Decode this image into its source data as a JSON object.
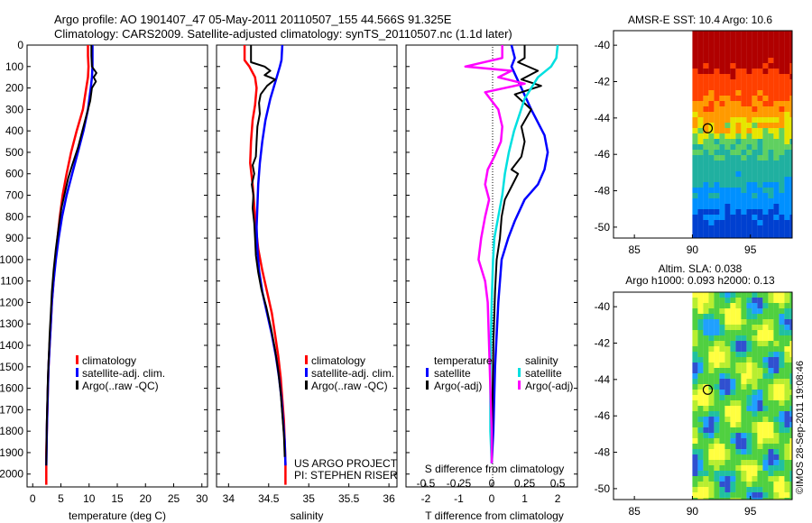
{
  "header": {
    "title_line1": "Argo profile: AO 1901407_47 05-May-2011 20110507_155 44.566S 91.325E",
    "title_line2": "Climatology: CARS2009. Satellite-adjusted climatology: synTS_20110507.nc (1.1d later)"
  },
  "colors": {
    "climatology": "#ff0000",
    "satellite": "#0000ff",
    "argo": "#000000",
    "salinity_satellite": "#00e0e0",
    "salinity_argo": "#ff00ff"
  },
  "legend": {
    "climatology": "climatology",
    "satellite_adj": "satellite-adj. clim.",
    "argo_raw": "Argo(..raw -QC)",
    "temperature": "temperature",
    "salinity": "salinity",
    "satellite": "satellite",
    "argo_adj": "Argo(-adj)"
  },
  "credits": {
    "project": "US ARGO PROJECT",
    "pi": "PI: STEPHEN RISER",
    "imos": "©IMOS 28-Sep-2011 19:08:46"
  },
  "maps": {
    "sst_title": "AMSR-E SST: 10.4  Argo: 10.6",
    "sla_title_1": "Altim. SLA: 0.038",
    "sla_title_2": "Argo h1000: 0.093 h2000: 0.13",
    "xticks": [
      "85",
      "90",
      "95"
    ],
    "yticks": [
      "-40",
      "-42",
      "-44",
      "-46",
      "-48",
      "-50"
    ],
    "float_position": {
      "lon": 91.325,
      "lat": -44.566
    }
  },
  "chart_data": [
    {
      "type": "line",
      "name": "temperature profile",
      "xlabel": "temperature (deg C)",
      "ylabel": "",
      "xlim": [
        -1,
        31
      ],
      "ylim": [
        2060,
        0
      ],
      "xticks": [
        0,
        5,
        10,
        15,
        20,
        25,
        30
      ],
      "xticklabels": [
        "0",
        "5",
        "10",
        "15",
        "20",
        "25",
        "30"
      ],
      "yticks": [
        0,
        100,
        200,
        300,
        400,
        500,
        600,
        700,
        800,
        900,
        1000,
        1100,
        1200,
        1300,
        1400,
        1500,
        1600,
        1700,
        1800,
        1900,
        2000
      ],
      "series": [
        {
          "name": "climatology",
          "color": "#ff0000",
          "points": [
            [
              9.8,
              0
            ],
            [
              9.8,
              50
            ],
            [
              9.9,
              100
            ],
            [
              9.8,
              150
            ],
            [
              9.5,
              200
            ],
            [
              8.9,
              300
            ],
            [
              7.8,
              400
            ],
            [
              6.8,
              500
            ],
            [
              6.0,
              600
            ],
            [
              5.3,
              700
            ],
            [
              4.8,
              800
            ],
            [
              4.4,
              900
            ],
            [
              4.0,
              1000
            ],
            [
              3.7,
              1100
            ],
            [
              3.4,
              1200
            ],
            [
              3.2,
              1300
            ],
            [
              3.0,
              1400
            ],
            [
              2.8,
              1500
            ],
            [
              2.7,
              1600
            ],
            [
              2.6,
              1700
            ],
            [
              2.5,
              1800
            ],
            [
              2.4,
              1900
            ],
            [
              2.4,
              2050
            ]
          ]
        },
        {
          "name": "satellite-adj. clim.",
          "color": "#0000ff",
          "points": [
            [
              10.6,
              0
            ],
            [
              10.6,
              50
            ],
            [
              10.6,
              100
            ],
            [
              10.5,
              150
            ],
            [
              10.3,
              200
            ],
            [
              9.8,
              300
            ],
            [
              9.0,
              400
            ],
            [
              8.0,
              500
            ],
            [
              7.0,
              600
            ],
            [
              6.0,
              700
            ],
            [
              5.2,
              800
            ],
            [
              4.6,
              900
            ],
            [
              4.1,
              1000
            ],
            [
              3.7,
              1100
            ],
            [
              3.4,
              1200
            ],
            [
              3.2,
              1300
            ],
            [
              3.0,
              1400
            ],
            [
              2.8,
              1500
            ],
            [
              2.7,
              1600
            ],
            [
              2.6,
              1700
            ],
            [
              2.5,
              1800
            ],
            [
              2.45,
              1900
            ],
            [
              2.4,
              1960
            ]
          ]
        },
        {
          "name": "Argo(..raw -QC)",
          "color": "#000000",
          "points": [
            [
              10.4,
              0
            ],
            [
              10.4,
              50
            ],
            [
              10.5,
              100
            ],
            [
              11.3,
              130
            ],
            [
              10.8,
              150
            ],
            [
              11.2,
              170
            ],
            [
              10.5,
              200
            ],
            [
              10.2,
              260
            ],
            [
              9.6,
              320
            ],
            [
              8.8,
              400
            ],
            [
              8.0,
              480
            ],
            [
              7.0,
              560
            ],
            [
              6.3,
              620
            ],
            [
              5.6,
              700
            ],
            [
              5.1,
              760
            ],
            [
              4.6,
              850
            ],
            [
              4.1,
              950
            ],
            [
              3.7,
              1050
            ],
            [
              3.4,
              1150
            ],
            [
              3.2,
              1250
            ],
            [
              3.0,
              1350
            ],
            [
              2.85,
              1450
            ],
            [
              2.7,
              1550
            ],
            [
              2.6,
              1650
            ],
            [
              2.5,
              1750
            ],
            [
              2.45,
              1850
            ],
            [
              2.4,
              1960
            ]
          ]
        }
      ]
    },
    {
      "type": "line",
      "name": "salinity profile",
      "xlabel": "salinity",
      "ylabel": "",
      "xlim": [
        33.85,
        36.1
      ],
      "ylim": [
        2060,
        0
      ],
      "xticks": [
        34,
        34.5,
        35,
        35.5,
        36
      ],
      "xticklabels": [
        "34",
        "34.5",
        "35",
        "35.5",
        "36"
      ],
      "series": [
        {
          "name": "climatology",
          "color": "#ff0000",
          "points": [
            [
              34.2,
              0
            ],
            [
              34.2,
              70
            ],
            [
              34.26,
              100
            ],
            [
              34.33,
              150
            ],
            [
              34.35,
              200
            ],
            [
              34.33,
              280
            ],
            [
              34.3,
              350
            ],
            [
              34.28,
              450
            ],
            [
              34.27,
              550
            ],
            [
              34.3,
              650
            ],
            [
              34.32,
              750
            ],
            [
              34.34,
              850
            ],
            [
              34.37,
              950
            ],
            [
              34.42,
              1050
            ],
            [
              34.48,
              1150
            ],
            [
              34.54,
              1250
            ],
            [
              34.58,
              1350
            ],
            [
              34.62,
              1450
            ],
            [
              34.65,
              1550
            ],
            [
              34.67,
              1650
            ],
            [
              34.69,
              1750
            ],
            [
              34.7,
              1850
            ],
            [
              34.71,
              1950
            ],
            [
              34.71,
              2050
            ]
          ]
        },
        {
          "name": "satellite-adj. clim.",
          "color": "#0000ff",
          "points": [
            [
              34.67,
              0
            ],
            [
              34.66,
              70
            ],
            [
              34.64,
              100
            ],
            [
              34.6,
              150
            ],
            [
              34.52,
              250
            ],
            [
              34.46,
              350
            ],
            [
              34.42,
              450
            ],
            [
              34.39,
              550
            ],
            [
              34.37,
              650
            ],
            [
              34.36,
              750
            ],
            [
              34.35,
              850
            ],
            [
              34.36,
              950
            ],
            [
              34.38,
              1050
            ],
            [
              34.42,
              1150
            ],
            [
              34.48,
              1250
            ],
            [
              34.54,
              1350
            ],
            [
              34.59,
              1450
            ],
            [
              34.63,
              1550
            ],
            [
              34.66,
              1650
            ],
            [
              34.68,
              1750
            ],
            [
              34.7,
              1850
            ],
            [
              34.71,
              1960
            ]
          ]
        },
        {
          "name": "Argo(..raw -QC)",
          "color": "#000000",
          "points": [
            [
              34.28,
              0
            ],
            [
              34.28,
              80
            ],
            [
              34.45,
              100
            ],
            [
              34.52,
              120
            ],
            [
              34.45,
              140
            ],
            [
              34.58,
              160
            ],
            [
              34.48,
              190
            ],
            [
              34.4,
              230
            ],
            [
              34.38,
              270
            ],
            [
              34.39,
              320
            ],
            [
              34.36,
              380
            ],
            [
              34.35,
              450
            ],
            [
              34.34,
              520
            ],
            [
              34.3,
              560
            ],
            [
              34.32,
              600
            ],
            [
              34.29,
              650
            ],
            [
              34.31,
              700
            ],
            [
              34.3,
              760
            ],
            [
              34.32,
              830
            ],
            [
              34.33,
              900
            ],
            [
              34.34,
              980
            ],
            [
              34.37,
              1060
            ],
            [
              34.41,
              1140
            ],
            [
              34.47,
              1220
            ],
            [
              34.53,
              1320
            ],
            [
              34.58,
              1420
            ],
            [
              34.62,
              1520
            ],
            [
              34.65,
              1620
            ],
            [
              34.67,
              1720
            ],
            [
              34.69,
              1820
            ],
            [
              34.7,
              1920
            ]
          ]
        }
      ]
    },
    {
      "type": "line",
      "name": "difference from climatology",
      "xlabel": "T difference from climatology",
      "xlabel_top": "S difference from climatology",
      "xlim": [
        -2.6,
        2.6
      ],
      "ylim": [
        2060,
        0
      ],
      "xticks": [
        -2,
        -1,
        0,
        1,
        2
      ],
      "xticklabels": [
        "-2",
        "-1",
        "0",
        "1",
        "2"
      ],
      "s_xticks": [
        -0.5,
        -0.25,
        0,
        0.25,
        0.5
      ],
      "s_xticklabels": [
        "-0.5",
        "-0.25",
        "0",
        "0.25",
        "0.5"
      ],
      "legend_groups": [
        "temperature",
        "salinity"
      ],
      "series": [
        {
          "name": "temperature satellite",
          "group": "temperature",
          "color": "#0000ff",
          "points": [
            [
              0.6,
              0
            ],
            [
              0.7,
              60
            ],
            [
              0.6,
              100
            ],
            [
              0.9,
              200
            ],
            [
              1.2,
              300
            ],
            [
              1.6,
              420
            ],
            [
              1.7,
              500
            ],
            [
              1.6,
              580
            ],
            [
              1.4,
              650
            ],
            [
              1.0,
              720
            ],
            [
              0.7,
              820
            ],
            [
              0.5,
              900
            ],
            [
              0.3,
              1000
            ],
            [
              0.2,
              1200
            ],
            [
              0.1,
              1500
            ],
            [
              0.05,
              1800
            ],
            [
              0.0,
              1950
            ]
          ]
        },
        {
          "name": "temperature Argo(-adj)",
          "group": "temperature",
          "color": "#000000",
          "points": [
            [
              1.0,
              0
            ],
            [
              1.0,
              60
            ],
            [
              0.8,
              80
            ],
            [
              1.4,
              120
            ],
            [
              0.9,
              160
            ],
            [
              1.5,
              190
            ],
            [
              0.7,
              230
            ],
            [
              1.2,
              300
            ],
            [
              0.9,
              380
            ],
            [
              1.0,
              450
            ],
            [
              0.9,
              520
            ],
            [
              0.6,
              580
            ],
            [
              0.8,
              600
            ],
            [
              0.6,
              660
            ],
            [
              0.4,
              720
            ],
            [
              0.3,
              800
            ],
            [
              0.25,
              900
            ],
            [
              0.15,
              1000
            ],
            [
              0.1,
              1150
            ],
            [
              0.05,
              1400
            ],
            [
              0.02,
              1700
            ],
            [
              0.0,
              1950
            ]
          ]
        },
        {
          "name": "salinity satellite",
          "group": "salinity",
          "color": "#00e0e0",
          "points": [
            [
              0.5,
              0
            ],
            [
              0.49,
              60
            ],
            [
              0.45,
              100
            ],
            [
              0.35,
              150
            ],
            [
              0.25,
              250
            ],
            [
              0.17,
              400
            ],
            [
              0.13,
              500
            ],
            [
              0.1,
              600
            ],
            [
              0.08,
              700
            ],
            [
              0.05,
              800
            ],
            [
              0.02,
              900
            ],
            [
              0.01,
              1000
            ],
            [
              0.0,
              1200
            ],
            [
              -0.01,
              1500
            ],
            [
              -0.01,
              1800
            ],
            [
              0.0,
              1950
            ]
          ]
        },
        {
          "name": "salinity Argo(-adj)",
          "group": "salinity",
          "color": "#ff00ff",
          "points": [
            [
              0.08,
              0
            ],
            [
              0.08,
              60
            ],
            [
              -0.2,
              100
            ],
            [
              0.15,
              120
            ],
            [
              0.05,
              150
            ],
            [
              0.25,
              180
            ],
            [
              -0.05,
              220
            ],
            [
              0.05,
              300
            ],
            [
              0.08,
              380
            ],
            [
              0.07,
              450
            ],
            [
              0.02,
              520
            ],
            [
              -0.03,
              580
            ],
            [
              -0.05,
              650
            ],
            [
              -0.02,
              720
            ],
            [
              -0.05,
              800
            ],
            [
              -0.08,
              900
            ],
            [
              -0.1,
              1000
            ],
            [
              -0.05,
              1100
            ],
            [
              -0.03,
              1200
            ],
            [
              -0.02,
              1400
            ],
            [
              -0.01,
              1600
            ],
            [
              0.0,
              1800
            ],
            [
              0.0,
              1950
            ]
          ]
        }
      ]
    }
  ]
}
